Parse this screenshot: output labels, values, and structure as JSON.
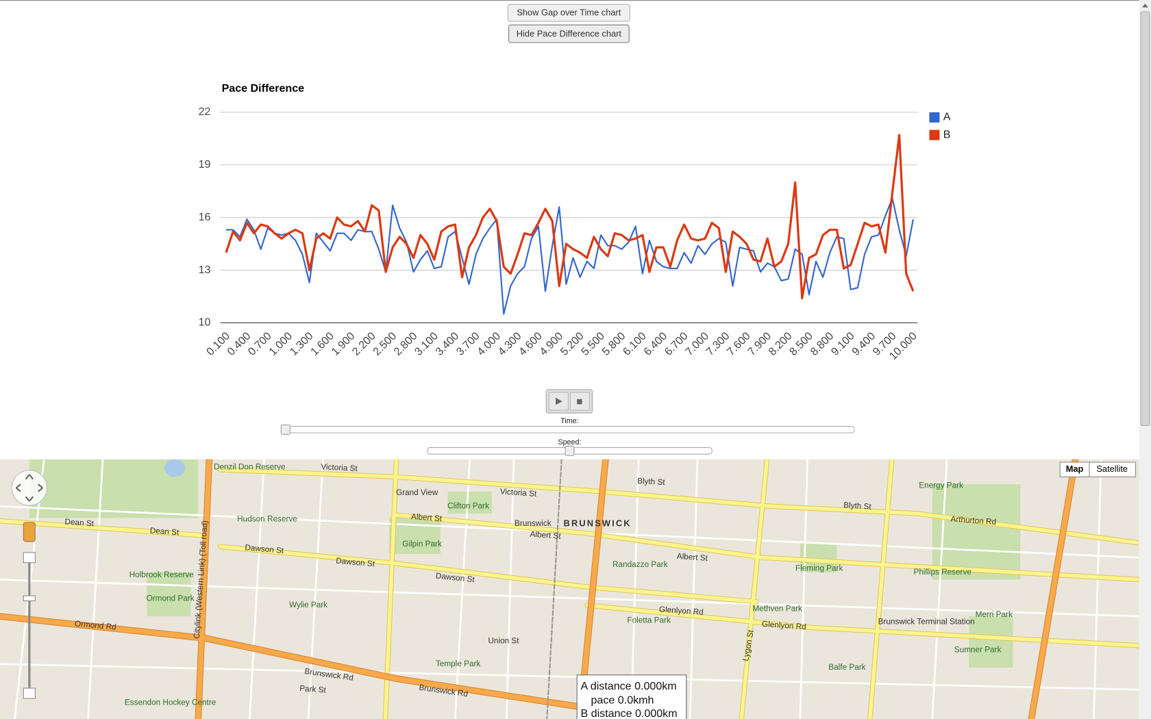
{
  "controls": {
    "show_gap_button": "Show Gap over Time chart",
    "hide_pace_button": "Hide Pace Difference chart",
    "time_label": "Time:",
    "speed_label": "Speed:"
  },
  "chart_data": {
    "type": "line",
    "title": "Pace Difference",
    "categories": [
      "0.100",
      null,
      null,
      "0.400",
      null,
      null,
      "0.700",
      null,
      null,
      "1.000",
      null,
      null,
      "1.300",
      null,
      null,
      "1.600",
      null,
      null,
      "1.900",
      null,
      null,
      "2.200",
      null,
      null,
      "2.500",
      null,
      null,
      "2.800",
      null,
      null,
      "3.100",
      null,
      null,
      "3.400",
      null,
      null,
      "3.700",
      null,
      null,
      "4.000",
      null,
      null,
      "4.300",
      null,
      null,
      "4.600",
      null,
      null,
      "4.900",
      null,
      null,
      "5.200",
      null,
      null,
      "5.500",
      null,
      null,
      "5.800",
      null,
      null,
      "6.100",
      null,
      null,
      "6.400",
      null,
      null,
      "6.700",
      null,
      null,
      "7.000",
      null,
      null,
      "7.300",
      null,
      null,
      "7.600",
      null,
      null,
      "7.900",
      null,
      null,
      "8.200",
      null,
      null,
      "8.500",
      null,
      null,
      "8.800",
      null,
      null,
      "9.100",
      null,
      null,
      "9.400",
      null,
      null,
      "9.700",
      null,
      null,
      "10.000"
    ],
    "series": [
      {
        "name": "A",
        "color": "#3366cc",
        "values": [
          15.3,
          15.3,
          14.9,
          15.9,
          15.3,
          14.2,
          15.4,
          15.1,
          15.0,
          15.1,
          14.7,
          13.9,
          12.3,
          15.1,
          14.6,
          14.1,
          15.1,
          15.1,
          14.7,
          15.3,
          15.2,
          15.2,
          14.2,
          12.9,
          16.7,
          15.4,
          14.6,
          12.9,
          13.6,
          14.1,
          13.1,
          13.2,
          14.9,
          15.2,
          13.7,
          12.2,
          13.9,
          14.8,
          15.4,
          15.9,
          10.5,
          12.1,
          12.8,
          13.2,
          14.8,
          15.5,
          11.8,
          14.4,
          16.6,
          12.2,
          13.7,
          12.6,
          13.5,
          13.1,
          15.0,
          14.4,
          14.4,
          14.2,
          14.6,
          15.5,
          12.8,
          14.7,
          13.5,
          13.2,
          13.1,
          13.1,
          14.0,
          13.4,
          14.4,
          13.9,
          14.5,
          14.8,
          14.6,
          12.1,
          14.3,
          14.2,
          14.1,
          12.9,
          13.4,
          13.2,
          12.4,
          12.5,
          14.2,
          13.9,
          11.6,
          13.5,
          12.6,
          14.0,
          14.9,
          14.8,
          11.9,
          12.0,
          13.9,
          14.9,
          15.0,
          16.1,
          17.1,
          15.3,
          13.8,
          15.9
        ]
      },
      {
        "name": "B",
        "color": "#dc3912",
        "values": [
          14.0,
          15.2,
          14.7,
          15.7,
          15.1,
          15.6,
          15.5,
          15.1,
          14.8,
          15.1,
          15.3,
          15.1,
          13.0,
          14.8,
          15.1,
          14.8,
          16.0,
          15.6,
          15.5,
          15.8,
          15.2,
          16.7,
          16.4,
          12.9,
          14.3,
          14.9,
          14.5,
          13.7,
          15.0,
          14.5,
          13.6,
          15.2,
          15.5,
          15.6,
          12.6,
          14.3,
          15.0,
          16.0,
          16.5,
          15.8,
          13.2,
          12.8,
          13.9,
          15.1,
          15.0,
          15.7,
          16.5,
          15.8,
          12.1,
          14.5,
          14.2,
          14.0,
          13.7,
          14.9,
          14.2,
          13.8,
          15.1,
          15.0,
          14.7,
          14.8,
          15.0,
          12.9,
          14.3,
          14.3,
          13.2,
          14.7,
          15.6,
          14.8,
          14.7,
          14.8,
          15.7,
          15.4,
          12.9,
          15.2,
          14.9,
          14.5,
          13.6,
          13.5,
          14.8,
          13.2,
          13.5,
          14.5,
          18.0,
          11.4,
          13.7,
          13.9,
          15.0,
          15.3,
          15.3,
          13.1,
          13.3,
          14.5,
          15.7,
          15.5,
          15.6,
          14.0,
          17.4,
          20.7,
          12.8,
          11.8
        ]
      }
    ],
    "ylim": [
      10,
      22
    ],
    "yticks": [
      10,
      13,
      16,
      19,
      22
    ],
    "grid": true,
    "legend": "right"
  },
  "map": {
    "type_buttons": [
      "Map",
      "Satellite"
    ],
    "labels": [
      "Victoria St",
      "Victoria St",
      "Blyth St",
      "Blyth St",
      "Albert St",
      "Albert St",
      "Albert St",
      "Dean St",
      "Dean St",
      "Dawson St",
      "Dawson St",
      "Dawson St",
      "Glenlyon Rd",
      "Glenlyon Rd",
      "Brunswick Rd",
      "Brunswick Rd",
      "BRUNSWICK",
      "Brunswick",
      "Gilpin Park",
      "Clifton Park",
      "Randazzo Park",
      "Foletta Park",
      "Fleming Park",
      "Methven Park",
      "Temple Park",
      "Hudson Reserve",
      "Holbrook Reserve",
      "Ormond Park",
      "Wylie Park",
      "Ormond Rd",
      "Balfe Park",
      "Phillips Reserve",
      "Merri Park",
      "Sumner Park",
      "Energy Park",
      "Arthurton Rd",
      "Lygon St",
      "Citylink (Western Link) (Toll road)",
      "Denzil Don Reserve",
      "Grand View",
      "Union St",
      "Park St",
      "Brunswick Terminal Station",
      "Essendon Hockey Centre"
    ],
    "tooltip": [
      "A distance 0.000km",
      "pace 0.0kmh",
      "B distance 0.000km"
    ]
  }
}
